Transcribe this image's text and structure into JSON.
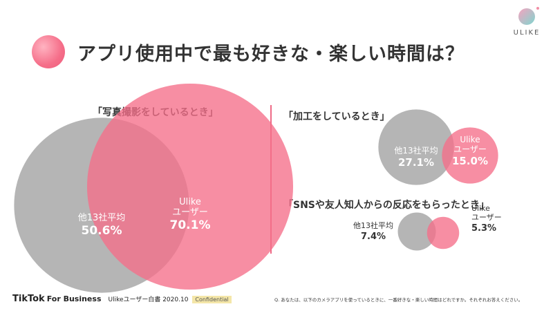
{
  "header": {
    "title": "アプリ使用中で最も好きな・楽しい時間は？",
    "brand_name": "ULIKE"
  },
  "chart_data": [
    {
      "type": "venn",
      "label": "「写真撮影をしているとき」",
      "series": [
        {
          "name": "他13社平均",
          "value": 50.6,
          "display": "50.6%",
          "color": "#a0a0a0"
        },
        {
          "name": "Ulike ユーザー",
          "name_lines": [
            "Ulike",
            "ユーザー"
          ],
          "value": 70.1,
          "display": "70.1%",
          "color": "#f56e89"
        }
      ]
    },
    {
      "type": "venn",
      "label": "「加工をしているとき」",
      "series": [
        {
          "name": "他13社平均",
          "value": 27.1,
          "display": "27.1%",
          "color": "#a0a0a0"
        },
        {
          "name": "Ulike ユーザー",
          "name_lines": [
            "Ulike",
            "ユーザー"
          ],
          "value": 15.0,
          "display": "15.0%",
          "color": "#f56e89"
        }
      ]
    },
    {
      "type": "venn",
      "label": "「SNSや友人知人からの反応をもらったとき」",
      "series": [
        {
          "name": "他13社平均",
          "value": 7.4,
          "display": "7.4%",
          "color": "#a0a0a0"
        },
        {
          "name": "Ulike ユーザー",
          "name_lines": [
            "Ulike",
            "ユーザー"
          ],
          "value": 5.3,
          "display": "5.3%",
          "color": "#f56e89"
        }
      ]
    }
  ],
  "footer": {
    "tiktok": "TikTok",
    "for_business": "For Business",
    "report": "Ulikeユーザー白書 2020.10",
    "confidential": "Confidential",
    "footnote": "Q. あなたは、以下のカメラアプリを使っているときに、一番好きな・楽しい時間はどれですか。それぞれお答えください。"
  }
}
